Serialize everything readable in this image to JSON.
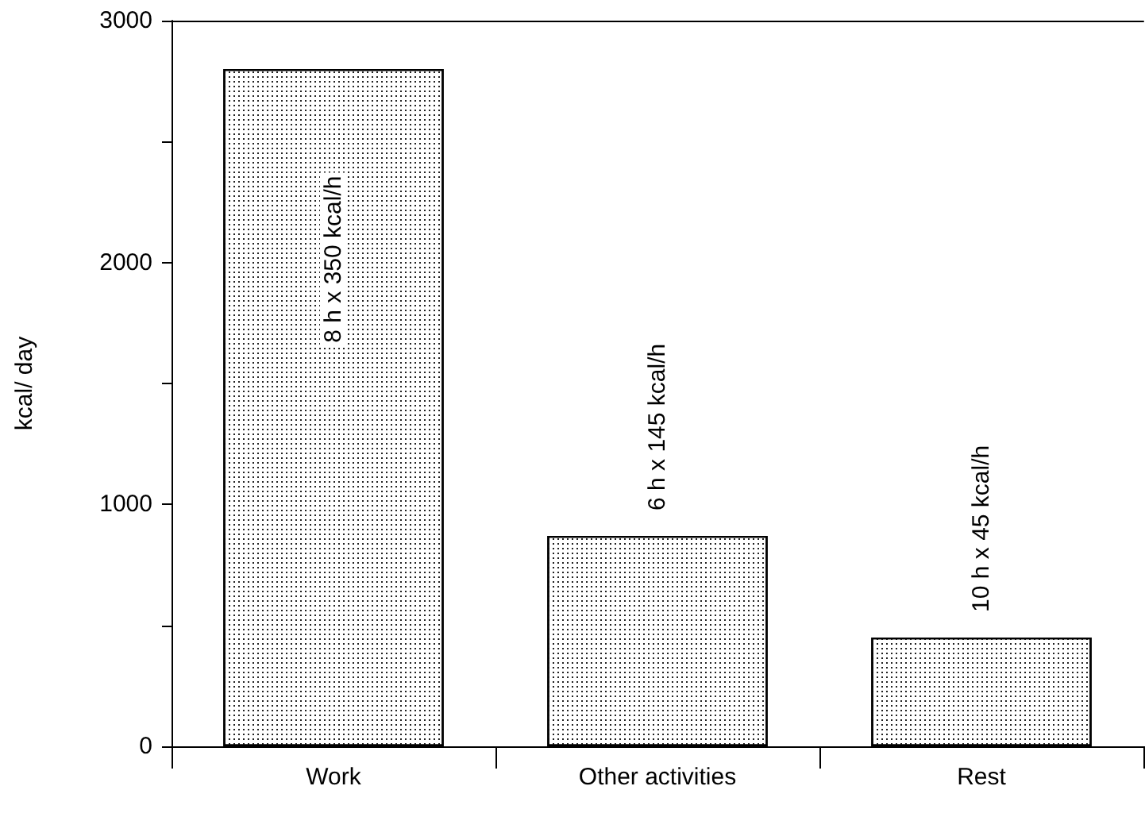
{
  "chart_data": {
    "type": "bar",
    "ylabel": "kcal/ day",
    "categories": [
      "Work",
      "Other activities",
      "Rest"
    ],
    "values": [
      2800,
      870,
      450
    ],
    "color": "#ffffff",
    "ylim": [
      0,
      3000
    ],
    "yticks": [
      0,
      {
        "value": 500,
        "label": null
      },
      1000,
      {
        "value": 1500,
        "label": null
      },
      2000,
      {
        "value": 2500,
        "label": null
      },
      3000
    ],
    "annotations": [
      "8 h x 350 kcal/h",
      "6 h x 145 kcal/h",
      "10 h x 45 kcal/h"
    ],
    "grid": false
  }
}
